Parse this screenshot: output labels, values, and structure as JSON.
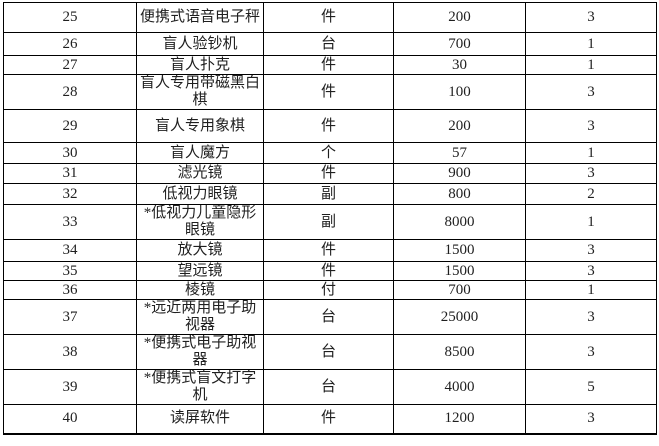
{
  "page": {
    "background": "#ffffff",
    "text_color": "#1f1f1f",
    "border_color": "#000000"
  },
  "table": {
    "rows": [
      {
        "serial": 25,
        "name": "便携式语音电子秤",
        "unit": "件",
        "price": 200,
        "quantity": 3
      },
      {
        "serial": 26,
        "name": "盲人验钞机",
        "unit": "台",
        "price": 700,
        "quantity": 1
      },
      {
        "serial": 27,
        "name": "盲人扑克",
        "unit": "件",
        "price": 30,
        "quantity": 1
      },
      {
        "serial": 28,
        "name": "盲人专用带磁黑白\n棋",
        "unit": "件",
        "price": 100,
        "quantity": 3
      },
      {
        "serial": 29,
        "name": "盲人专用象棋",
        "unit": "件",
        "price": 200,
        "quantity": 3
      },
      {
        "serial": 30,
        "name": "盲人魔方",
        "unit": "个",
        "price": 57,
        "quantity": 1
      },
      {
        "serial": 31,
        "name": "滤光镜",
        "unit": "件",
        "price": 900,
        "quantity": 3
      },
      {
        "serial": 32,
        "name": "低视力眼镜",
        "unit": "副",
        "price": 800,
        "quantity": 2
      },
      {
        "serial": 33,
        "name": "*低视力儿童隐形\n眼镜",
        "unit": "副",
        "price": 8000,
        "quantity": 1
      },
      {
        "serial": 34,
        "name": "放大镜",
        "unit": "件",
        "price": 1500,
        "quantity": 3
      },
      {
        "serial": 35,
        "name": "望远镜",
        "unit": "件",
        "price": 1500,
        "quantity": 3
      },
      {
        "serial": 36,
        "name": "棱镜",
        "unit": "付",
        "price": 700,
        "quantity": 1
      },
      {
        "serial": 37,
        "name": "*远近两用电子助\n视器",
        "unit": "台",
        "price": 25000,
        "quantity": 3
      },
      {
        "serial": 38,
        "name": "*便携式电子助视\n器",
        "unit": "台",
        "price": 8500,
        "quantity": 3
      },
      {
        "serial": 39,
        "name": "*便携式盲文打字\n机",
        "unit": "台",
        "price": 4000,
        "quantity": 5
      },
      {
        "serial": 40,
        "name": "读屏软件",
        "unit": "件",
        "price": 1200,
        "quantity": 3
      }
    ]
  }
}
